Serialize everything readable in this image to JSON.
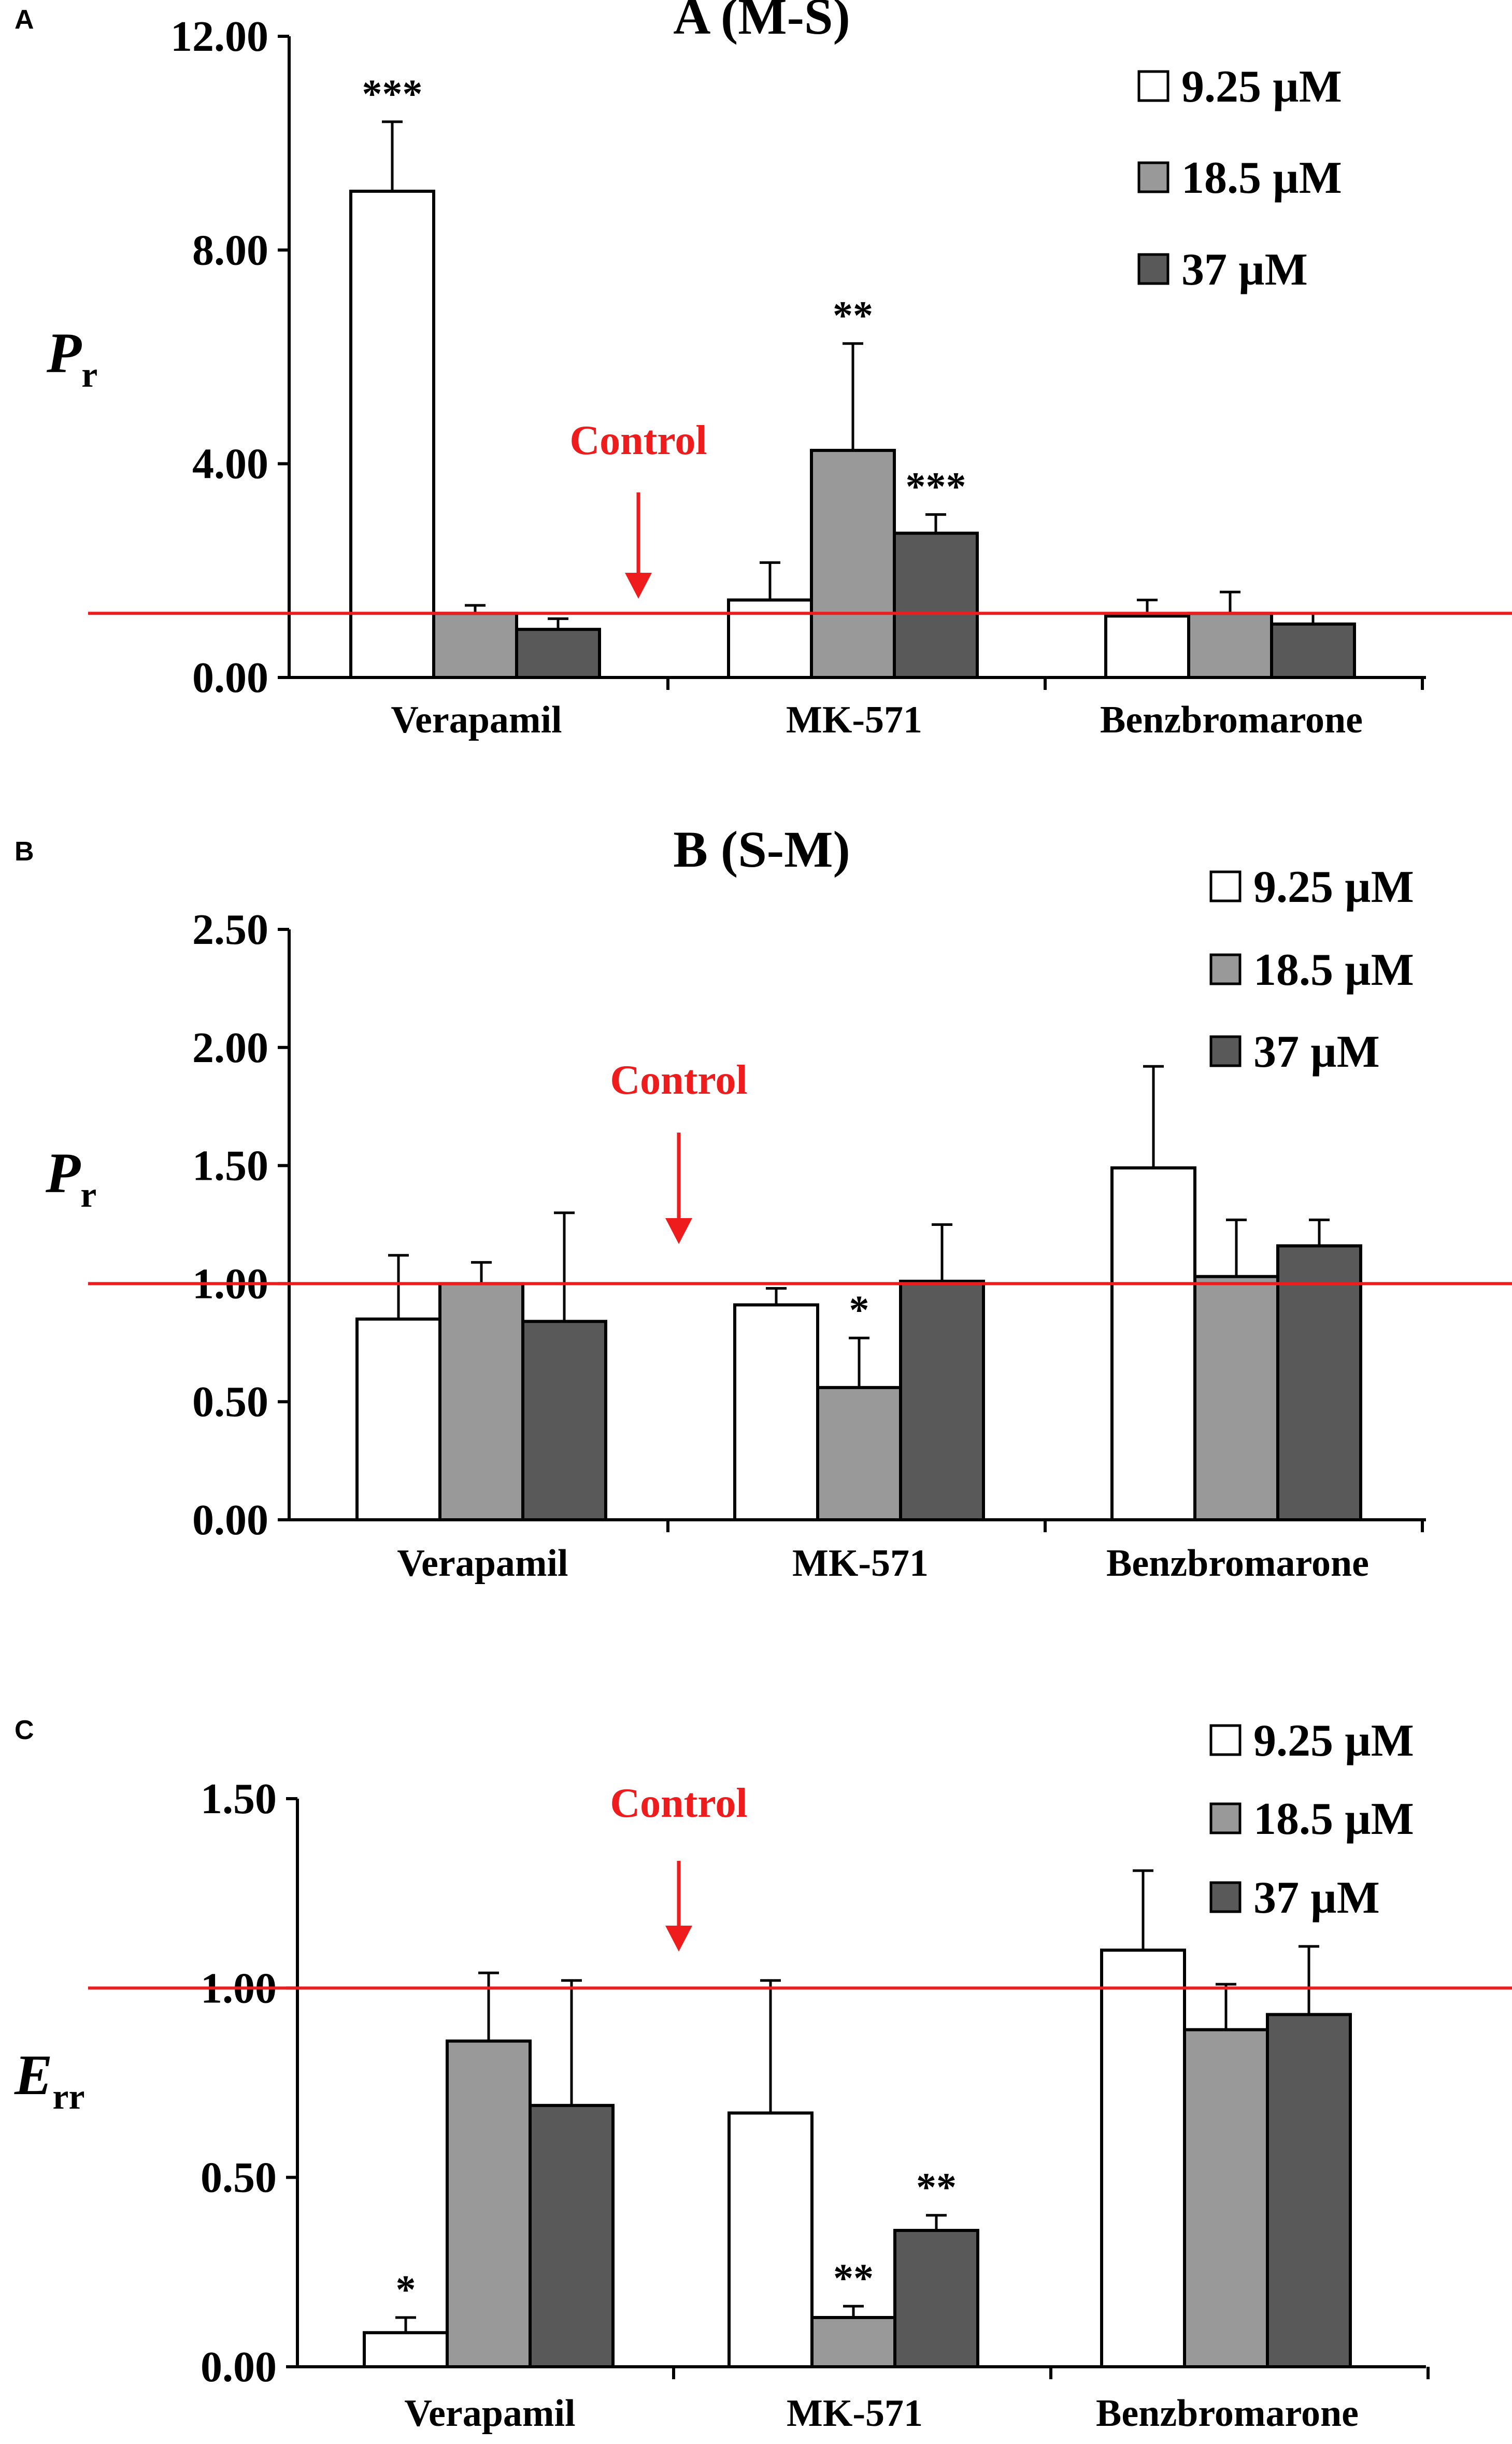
{
  "legend_labels": [
    "9.25 µM",
    "18.5 µM",
    "37 µM"
  ],
  "series_colors": [
    "#ffffff",
    "#999999",
    "#595959"
  ],
  "control_color": "#ee1c1c",
  "control_label": "Control",
  "chart_data": [
    {
      "panel_label": "A",
      "type": "bar",
      "title": "A  (M-S)",
      "ylabel": "P",
      "ylabel_sub": "r",
      "ylim": [
        0,
        12
      ],
      "ytick_labels": [
        "0.00",
        "4.00",
        "8.00",
        "12.00"
      ],
      "categories": [
        "Verapamil",
        "MK-571",
        "Benzbromarone"
      ],
      "control_value": 1.2,
      "series": [
        {
          "name": "9.25 µM",
          "values": [
            9.1,
            1.45,
            1.15
          ],
          "errors": [
            1.3,
            0.7,
            0.3
          ],
          "sig": [
            "***",
            "",
            ""
          ]
        },
        {
          "name": "18.5 µM",
          "values": [
            1.2,
            4.25,
            1.2
          ],
          "errors": [
            0.15,
            2.0,
            0.4
          ],
          "sig": [
            "",
            "**",
            ""
          ]
        },
        {
          "name": "37 µM",
          "values": [
            0.9,
            2.7,
            1.0
          ],
          "errors": [
            0.2,
            0.35,
            0.2
          ],
          "sig": [
            "",
            "***",
            ""
          ]
        }
      ]
    },
    {
      "panel_label": "B",
      "type": "bar",
      "title": "B  (S-M)",
      "ylabel": "P",
      "ylabel_sub": "r",
      "ylim": [
        0,
        2.5
      ],
      "ytick_labels": [
        "0.00",
        "0.50",
        "1.00",
        "1.50",
        "2.00",
        "2.50"
      ],
      "categories": [
        "Verapamil",
        "MK-571",
        "Benzbromarone"
      ],
      "control_value": 1.0,
      "series": [
        {
          "name": "9.25 µM",
          "values": [
            0.85,
            0.91,
            1.49
          ],
          "errors": [
            0.27,
            0.07,
            0.43
          ],
          "sig": [
            "",
            "",
            ""
          ]
        },
        {
          "name": "18.5 µM",
          "values": [
            1.0,
            0.56,
            1.03
          ],
          "errors": [
            0.09,
            0.21,
            0.24
          ],
          "sig": [
            "",
            "*",
            ""
          ]
        },
        {
          "name": "37 µM",
          "values": [
            0.84,
            1.01,
            1.16
          ],
          "errors": [
            0.46,
            0.24,
            0.11
          ],
          "sig": [
            "",
            "",
            ""
          ]
        }
      ]
    },
    {
      "panel_label": "C",
      "type": "bar",
      "title": "",
      "ylabel": "E",
      "ylabel_sub": "rr",
      "ylim": [
        0,
        1.5
      ],
      "ytick_labels": [
        "0.00",
        "0.50",
        "1.00",
        "1.50"
      ],
      "categories": [
        "Verapamil",
        "MK-571",
        "Benzbromarone"
      ],
      "control_value": 1.0,
      "series": [
        {
          "name": "9.25 µM",
          "values": [
            0.09,
            0.67,
            1.1
          ],
          "errors": [
            0.04,
            0.35,
            0.21
          ],
          "sig": [
            "*",
            "",
            ""
          ]
        },
        {
          "name": "18.5 µM",
          "values": [
            0.86,
            0.13,
            0.89
          ],
          "errors": [
            0.18,
            0.03,
            0.12
          ],
          "sig": [
            "",
            "**",
            ""
          ]
        },
        {
          "name": "37 µM",
          "values": [
            0.69,
            0.36,
            0.93
          ],
          "errors": [
            0.33,
            0.04,
            0.18
          ],
          "sig": [
            "",
            "**",
            ""
          ]
        }
      ]
    }
  ]
}
